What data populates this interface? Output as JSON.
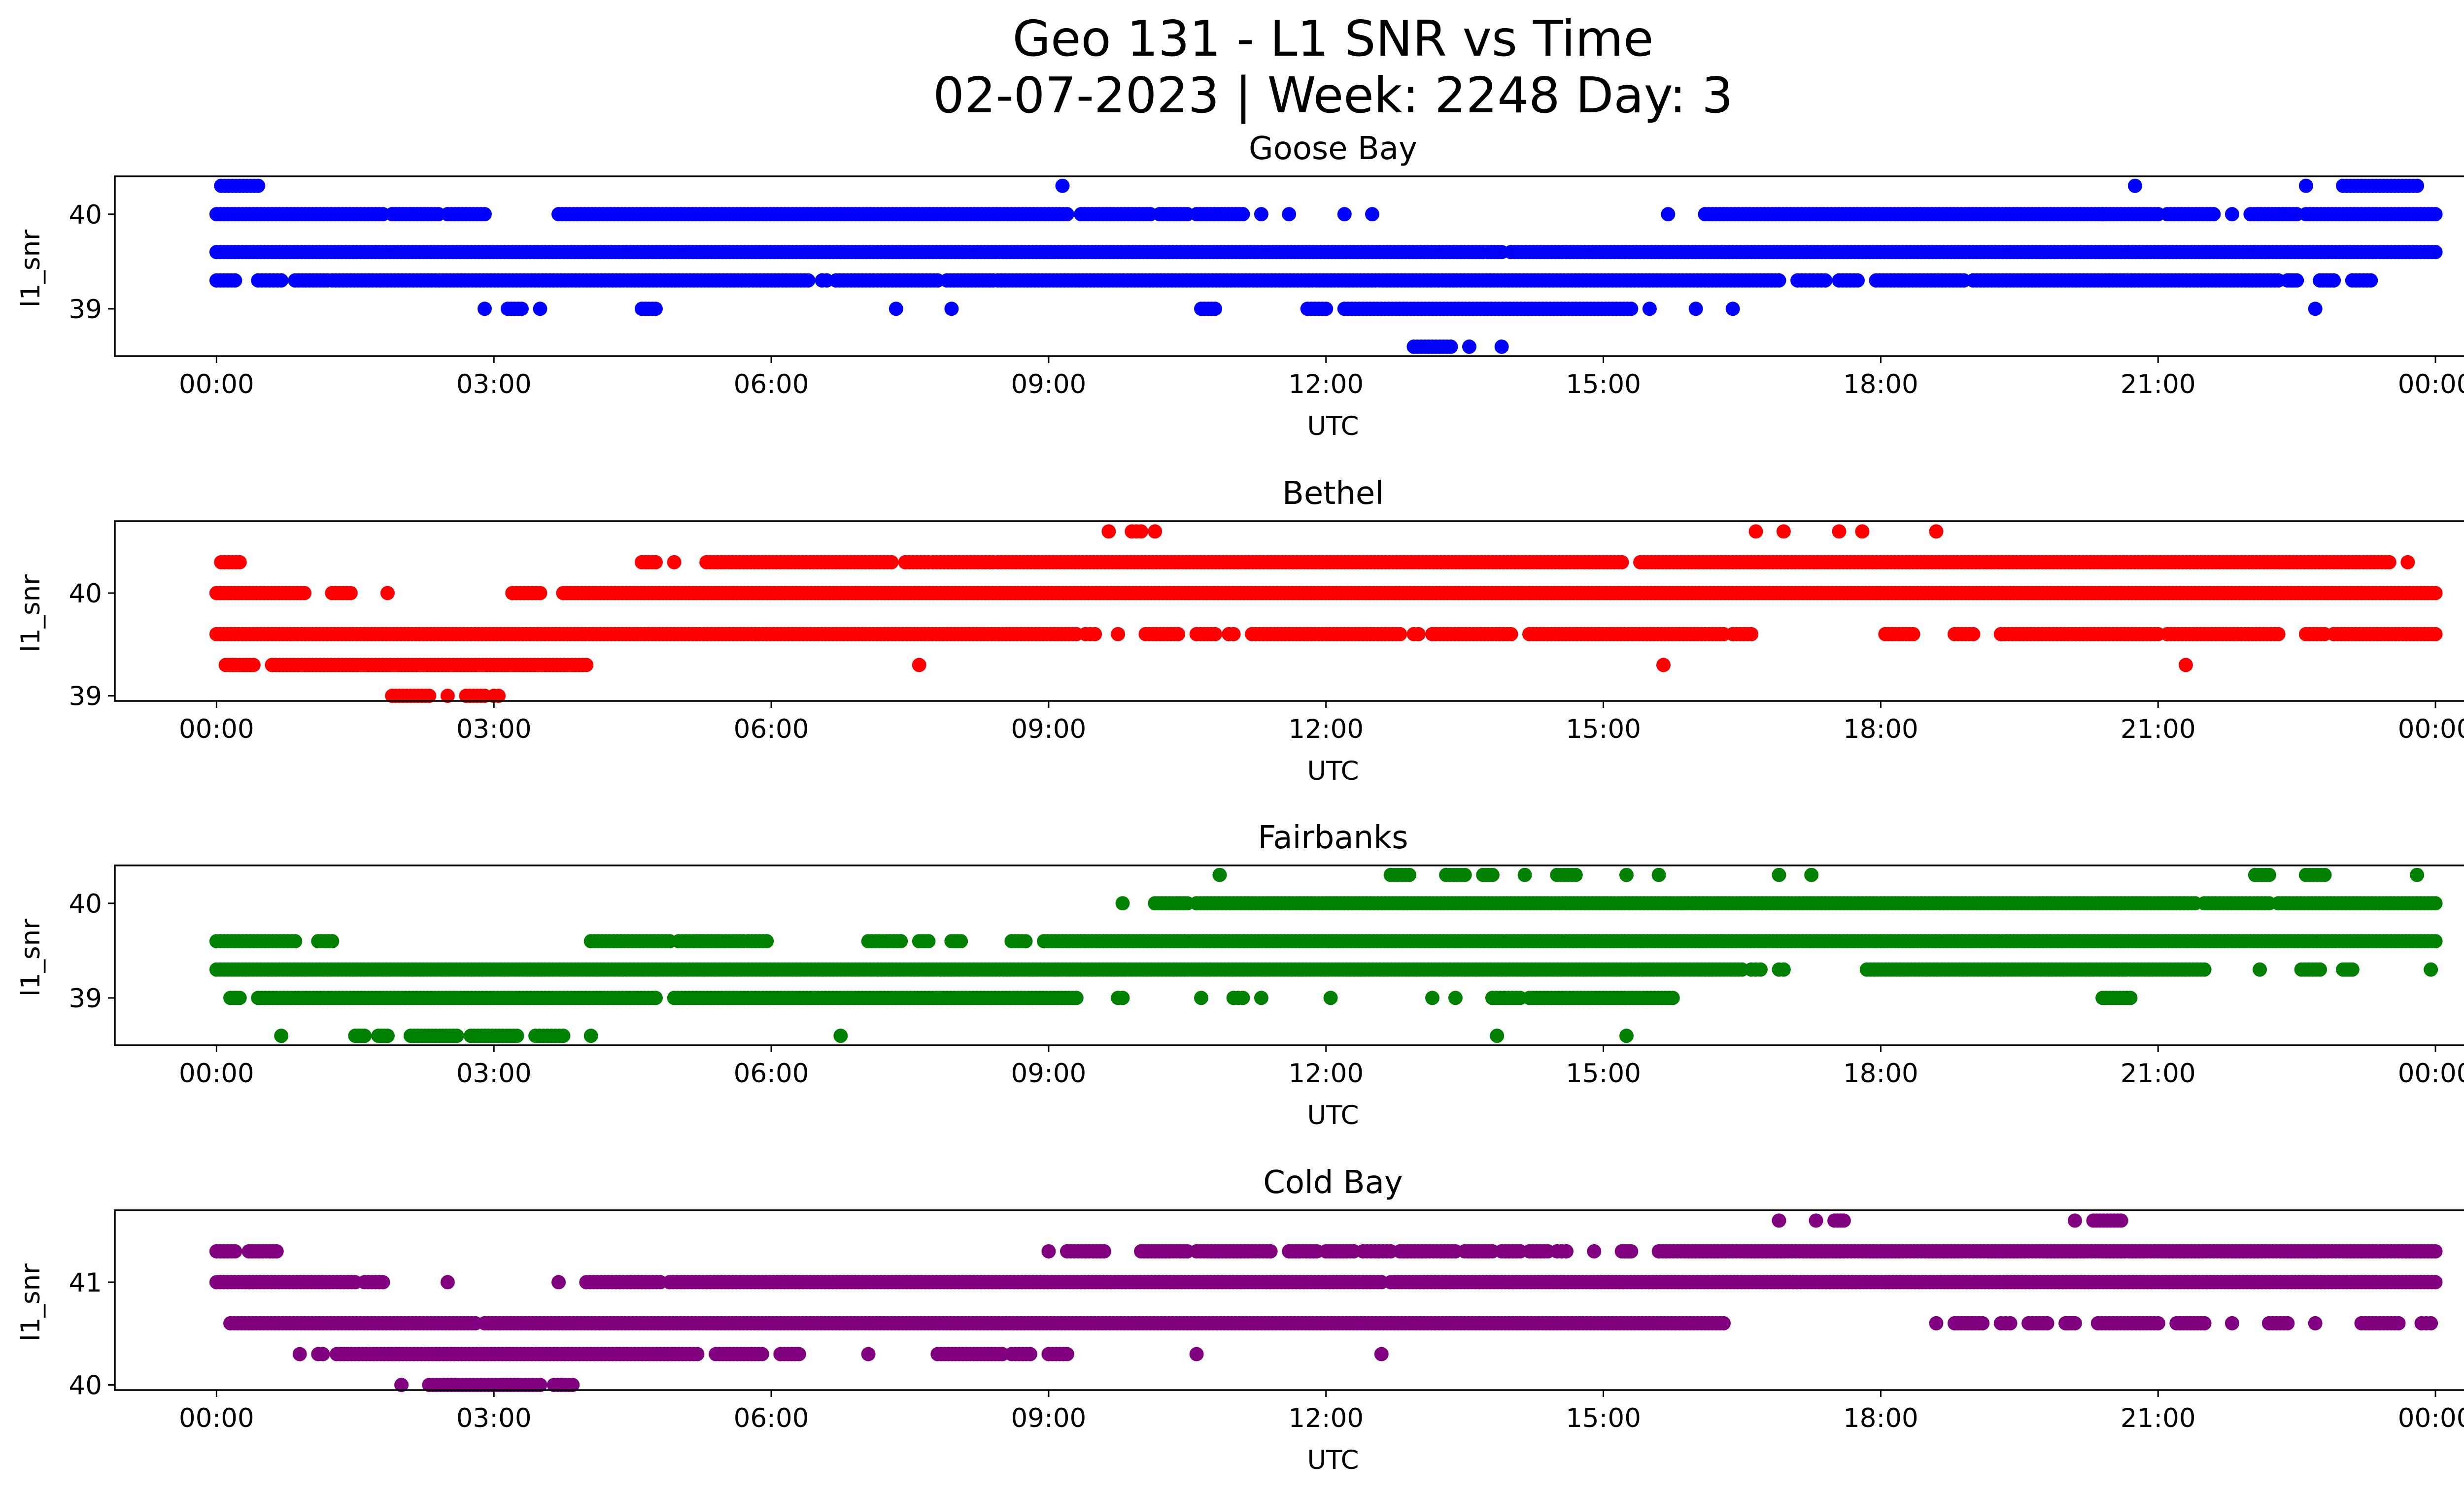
{
  "figure": {
    "title_line1": "Geo 131 - L1 SNR vs Time",
    "title_line2": "02-07-2023 | Week: 2248 Day: 3"
  },
  "chart_data": [
    {
      "type": "scatter",
      "title": "Goose Bay",
      "xlabel": "UTC",
      "ylabel": "l1_snr",
      "color": "#0000ff",
      "x_ticks": [
        "00:00",
        "03:00",
        "06:00",
        "09:00",
        "12:00",
        "15:00",
        "18:00",
        "21:00",
        "00:00"
      ],
      "x_range_hours": [
        -1.1,
        25.3
      ],
      "ylim": [
        38.5,
        40.4
      ],
      "y_ticks": [
        39,
        40
      ],
      "series": [
        {
          "y": 40.3,
          "segments": [
            [
              0.05,
              0.45
            ],
            [
              9.15,
              9.15
            ],
            [
              20.75,
              20.75
            ],
            [
              22.6,
              22.6
            ],
            [
              23.0,
              23.8
            ]
          ]
        },
        {
          "y": 40.0,
          "segments": [
            [
              0.0,
              1.8
            ],
            [
              1.9,
              2.4
            ],
            [
              2.5,
              2.9
            ],
            [
              3.7,
              9.2
            ],
            [
              9.35,
              10.1
            ],
            [
              10.2,
              10.5
            ],
            [
              10.6,
              11.1
            ],
            [
              11.3,
              11.3
            ],
            [
              11.6,
              11.6
            ],
            [
              12.2,
              12.2
            ],
            [
              12.5,
              12.5
            ],
            [
              15.7,
              15.7
            ],
            [
              16.1,
              20.4
            ],
            [
              20.4,
              21.0
            ],
            [
              21.1,
              21.6
            ],
            [
              21.8,
              21.8
            ],
            [
              22.0,
              22.5
            ],
            [
              22.6,
              24.0
            ]
          ]
        },
        {
          "y": 39.6,
          "segments": [
            [
              0.0,
              13.7
            ],
            [
              13.75,
              13.9
            ],
            [
              14.0,
              24.0
            ]
          ]
        },
        {
          "y": 39.3,
          "segments": [
            [
              0.0,
              0.2
            ],
            [
              0.45,
              0.7
            ],
            [
              0.85,
              1.2
            ],
            [
              1.25,
              6.4
            ],
            [
              6.55,
              6.6
            ],
            [
              6.7,
              7.8
            ],
            [
              7.9,
              8.4
            ],
            [
              8.45,
              16.9
            ],
            [
              17.1,
              17.4
            ],
            [
              17.55,
              17.75
            ],
            [
              17.95,
              18.9
            ],
            [
              19.0,
              22.3
            ],
            [
              22.4,
              22.5
            ],
            [
              22.75,
              22.9
            ],
            [
              23.1,
              23.3
            ]
          ]
        },
        {
          "y": 39.0,
          "segments": [
            [
              2.9,
              2.9
            ],
            [
              3.15,
              3.3
            ],
            [
              3.5,
              3.5
            ],
            [
              4.6,
              4.75
            ],
            [
              7.35,
              7.35
            ],
            [
              7.95,
              7.95
            ],
            [
              10.65,
              10.8
            ],
            [
              11.8,
              12.0
            ],
            [
              12.2,
              15.3
            ],
            [
              15.5,
              15.5
            ],
            [
              16.0,
              16.0
            ],
            [
              16.4,
              16.4
            ],
            [
              22.7,
              22.7
            ]
          ]
        },
        {
          "y": 38.6,
          "segments": [
            [
              12.95,
              13.35
            ],
            [
              13.55,
              13.55
            ],
            [
              13.9,
              13.9
            ]
          ]
        }
      ]
    },
    {
      "type": "scatter",
      "title": "Bethel",
      "xlabel": "UTC",
      "ylabel": "l1_snr",
      "color": "#ff0000",
      "x_ticks": [
        "00:00",
        "03:00",
        "06:00",
        "09:00",
        "12:00",
        "15:00",
        "18:00",
        "21:00",
        "00:00"
      ],
      "x_range_hours": [
        -1.1,
        25.3
      ],
      "ylim": [
        38.95,
        40.7
      ],
      "y_ticks": [
        39,
        40
      ],
      "series": [
        {
          "y": 40.6,
          "segments": [
            [
              9.65,
              9.65
            ],
            [
              9.9,
              10.0
            ],
            [
              10.15,
              10.15
            ],
            [
              16.65,
              16.65
            ],
            [
              16.95,
              16.95
            ],
            [
              17.55,
              17.55
            ],
            [
              17.8,
              17.8
            ],
            [
              18.6,
              18.6
            ]
          ]
        },
        {
          "y": 40.3,
          "segments": [
            [
              0.05,
              0.25
            ],
            [
              4.6,
              4.75
            ],
            [
              4.95,
              4.95
            ],
            [
              5.3,
              7.3
            ],
            [
              7.45,
              7.7
            ],
            [
              7.75,
              8.4
            ],
            [
              8.45,
              15.2
            ],
            [
              15.4,
              23.5
            ],
            [
              23.7,
              23.7
            ]
          ]
        },
        {
          "y": 40.0,
          "segments": [
            [
              0.0,
              0.95
            ],
            [
              1.25,
              1.45
            ],
            [
              1.85,
              1.85
            ],
            [
              3.2,
              3.5
            ],
            [
              3.75,
              24.0
            ]
          ]
        },
        {
          "y": 39.6,
          "segments": [
            [
              0.0,
              9.3
            ],
            [
              9.4,
              9.5
            ],
            [
              9.75,
              9.75
            ],
            [
              10.05,
              10.4
            ],
            [
              10.6,
              10.8
            ],
            [
              10.95,
              11.0
            ],
            [
              11.2,
              12.8
            ],
            [
              12.95,
              13.0
            ],
            [
              13.15,
              14.0
            ],
            [
              14.2,
              16.3
            ],
            [
              16.4,
              16.6
            ],
            [
              18.05,
              18.35
            ],
            [
              18.8,
              19.0
            ],
            [
              19.3,
              21.0
            ],
            [
              21.1,
              22.3
            ],
            [
              22.6,
              22.8
            ],
            [
              22.9,
              24.0
            ]
          ]
        },
        {
          "y": 39.3,
          "segments": [
            [
              0.1,
              0.4
            ],
            [
              0.6,
              4.0
            ],
            [
              7.6,
              7.6
            ],
            [
              15.65,
              15.65
            ],
            [
              21.3,
              21.3
            ]
          ]
        },
        {
          "y": 39.0,
          "segments": [
            [
              1.9,
              2.3
            ],
            [
              2.5,
              2.5
            ],
            [
              2.7,
              2.9
            ],
            [
              3.0,
              3.05
            ]
          ]
        }
      ]
    },
    {
      "type": "scatter",
      "title": "Fairbanks",
      "xlabel": "UTC",
      "ylabel": "l1_snr",
      "color": "#008000",
      "x_ticks": [
        "00:00",
        "03:00",
        "06:00",
        "09:00",
        "12:00",
        "15:00",
        "18:00",
        "21:00",
        "00:00"
      ],
      "x_range_hours": [
        -1.1,
        25.3
      ],
      "ylim": [
        38.5,
        40.4
      ],
      "y_ticks": [
        39,
        40
      ],
      "series": [
        {
          "y": 40.3,
          "segments": [
            [
              10.85,
              10.85
            ],
            [
              12.7,
              12.9
            ],
            [
              13.3,
              13.5
            ],
            [
              13.7,
              13.8
            ],
            [
              14.15,
              14.15
            ],
            [
              14.5,
              14.7
            ],
            [
              15.25,
              15.25
            ],
            [
              15.6,
              15.6
            ],
            [
              16.9,
              16.9
            ],
            [
              17.25,
              17.25
            ],
            [
              22.05,
              22.2
            ],
            [
              22.6,
              22.8
            ],
            [
              23.8,
              23.8
            ]
          ]
        },
        {
          "y": 40.0,
          "segments": [
            [
              9.8,
              9.8
            ],
            [
              10.15,
              10.5
            ],
            [
              10.6,
              21.4
            ],
            [
              21.5,
              22.2
            ],
            [
              22.3,
              24.0
            ]
          ]
        },
        {
          "y": 39.6,
          "segments": [
            [
              0.0,
              0.85
            ],
            [
              1.1,
              1.25
            ],
            [
              4.05,
              4.9
            ],
            [
              5.0,
              5.7
            ],
            [
              5.75,
              5.95
            ],
            [
              7.05,
              7.4
            ],
            [
              7.6,
              7.7
            ],
            [
              7.95,
              8.05
            ],
            [
              8.6,
              8.75
            ],
            [
              8.95,
              24.0
            ]
          ]
        },
        {
          "y": 39.3,
          "segments": [
            [
              0.0,
              16.5
            ],
            [
              16.6,
              16.7
            ],
            [
              16.9,
              16.95
            ],
            [
              17.85,
              21.5
            ],
            [
              22.1,
              22.1
            ],
            [
              22.55,
              22.75
            ],
            [
              23.0,
              23.1
            ],
            [
              23.95,
              23.95
            ]
          ]
        },
        {
          "y": 39.0,
          "segments": [
            [
              0.15,
              0.25
            ],
            [
              0.45,
              4.75
            ],
            [
              4.95,
              9.3
            ],
            [
              9.75,
              9.8
            ],
            [
              10.65,
              10.65
            ],
            [
              11.0,
              11.1
            ],
            [
              11.3,
              11.3
            ],
            [
              12.05,
              12.05
            ],
            [
              13.15,
              13.15
            ],
            [
              13.4,
              13.4
            ],
            [
              13.8,
              14.1
            ],
            [
              14.2,
              15.75
            ],
            [
              20.4,
              20.7
            ]
          ]
        },
        {
          "y": 38.6,
          "segments": [
            [
              0.7,
              0.7
            ],
            [
              1.5,
              1.6
            ],
            [
              1.75,
              1.85
            ],
            [
              2.1,
              2.6
            ],
            [
              2.75,
              3.25
            ],
            [
              3.45,
              3.75
            ],
            [
              4.05,
              4.05
            ],
            [
              6.75,
              6.75
            ],
            [
              13.85,
              13.85
            ],
            [
              15.25,
              15.25
            ]
          ]
        }
      ]
    },
    {
      "type": "scatter",
      "title": "Cold Bay",
      "xlabel": "UTC",
      "ylabel": "l1_snr",
      "color": "#800080",
      "x_ticks": [
        "00:00",
        "03:00",
        "06:00",
        "09:00",
        "12:00",
        "15:00",
        "18:00",
        "21:00",
        "00:00"
      ],
      "x_range_hours": [
        -1.1,
        25.3
      ],
      "ylim": [
        39.95,
        41.7
      ],
      "y_ticks": [
        40,
        41
      ],
      "series": [
        {
          "y": 41.6,
          "segments": [
            [
              16.9,
              16.9
            ],
            [
              17.3,
              17.3
            ],
            [
              17.5,
              17.6
            ],
            [
              20.1,
              20.1
            ],
            [
              20.3,
              20.6
            ]
          ]
        },
        {
          "y": 41.3,
          "segments": [
            [
              0.0,
              0.2
            ],
            [
              0.35,
              0.65
            ],
            [
              9.0,
              9.0
            ],
            [
              9.2,
              9.6
            ],
            [
              10.0,
              10.5
            ],
            [
              10.6,
              11.4
            ],
            [
              11.6,
              11.9
            ],
            [
              12.0,
              12.3
            ],
            [
              12.4,
              12.7
            ],
            [
              12.8,
              13.4
            ],
            [
              13.5,
              13.8
            ],
            [
              13.9,
              14.1
            ],
            [
              14.2,
              14.4
            ],
            [
              14.5,
              14.6
            ],
            [
              14.9,
              14.9
            ],
            [
              15.2,
              15.3
            ],
            [
              15.6,
              24.0
            ]
          ]
        },
        {
          "y": 41.0,
          "segments": [
            [
              0.0,
              1.5
            ],
            [
              1.6,
              1.8
            ],
            [
              2.5,
              2.5
            ],
            [
              3.7,
              3.7
            ],
            [
              4.0,
              4.8
            ],
            [
              4.9,
              12.6
            ],
            [
              12.7,
              24.0
            ]
          ]
        },
        {
          "y": 40.6,
          "segments": [
            [
              0.15,
              2.8
            ],
            [
              2.9,
              16.3
            ],
            [
              18.6,
              18.6
            ],
            [
              18.8,
              19.1
            ],
            [
              19.3,
              19.4
            ],
            [
              19.6,
              19.8
            ],
            [
              20.0,
              20.1
            ],
            [
              20.35,
              21.0
            ],
            [
              21.2,
              21.5
            ],
            [
              21.8,
              21.8
            ],
            [
              22.2,
              22.4
            ],
            [
              22.7,
              22.7
            ],
            [
              23.2,
              23.6
            ],
            [
              23.85,
              23.95
            ]
          ]
        },
        {
          "y": 40.3,
          "segments": [
            [
              0.9,
              0.9
            ],
            [
              1.1,
              1.15
            ],
            [
              1.3,
              5.2
            ],
            [
              5.4,
              5.9
            ],
            [
              6.1,
              6.3
            ],
            [
              7.05,
              7.05
            ],
            [
              7.8,
              8.5
            ],
            [
              8.6,
              8.8
            ],
            [
              9.0,
              9.2
            ],
            [
              10.6,
              10.6
            ],
            [
              12.6,
              12.6
            ]
          ]
        },
        {
          "y": 40.0,
          "segments": [
            [
              2.0,
              2.0
            ],
            [
              2.3,
              3.5
            ],
            [
              3.65,
              3.85
            ]
          ]
        }
      ]
    }
  ]
}
